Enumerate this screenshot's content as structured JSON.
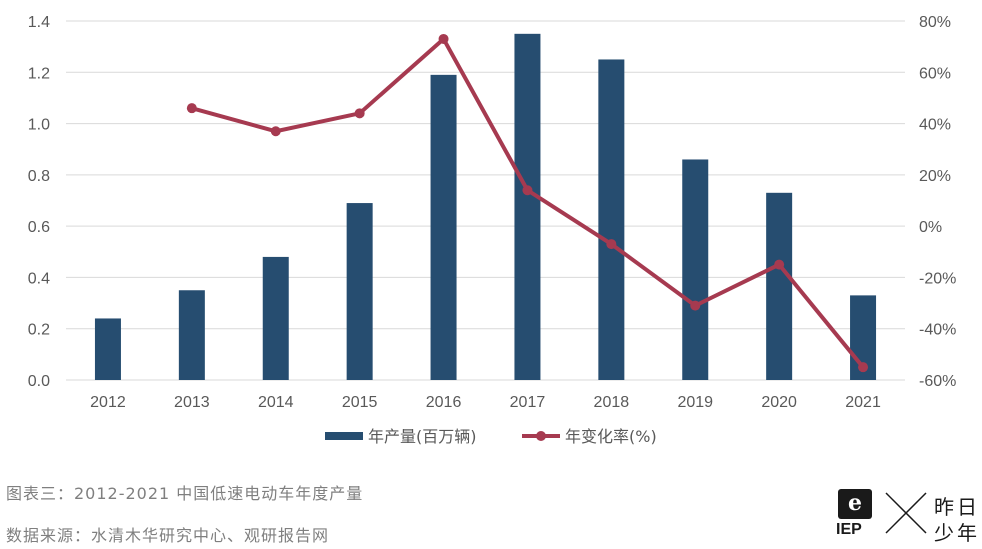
{
  "chart_data": {
    "type": "bar",
    "categories": [
      "2012",
      "2013",
      "2014",
      "2015",
      "2016",
      "2017",
      "2018",
      "2019",
      "2020",
      "2021"
    ],
    "series": [
      {
        "name": "年产量(百万辆)",
        "type": "bar",
        "axis": "left",
        "color": "#264d70",
        "values": [
          0.24,
          0.35,
          0.48,
          0.69,
          1.19,
          1.35,
          1.25,
          0.86,
          0.73,
          0.33
        ]
      },
      {
        "name": "年变化率(%)",
        "type": "line",
        "axis": "right",
        "color": "#a63a50",
        "values": [
          null,
          46,
          37,
          44,
          73,
          14,
          -7,
          -31,
          -15,
          -55
        ]
      }
    ],
    "y_left": {
      "range": [
        0,
        1.4
      ],
      "ticks": [
        "0.0",
        "0.2",
        "0.4",
        "0.6",
        "0.8",
        "1.0",
        "1.2",
        "1.4"
      ]
    },
    "y_right": {
      "range": [
        -60,
        80
      ],
      "ticks": [
        "-60%",
        "-40%",
        "-20%",
        "0%",
        "20%",
        "40%",
        "60%",
        "80%"
      ]
    },
    "grid": true,
    "legend_position": "bottom-center"
  },
  "captions": {
    "figure": "图表三：2012-2021 中国低速电动车年度产量",
    "source": "数据来源：水清木华研究中心、观研报告网"
  },
  "logo": {
    "mark": "e",
    "brand": "IEP",
    "line1": "昨日",
    "line2": "少年"
  }
}
